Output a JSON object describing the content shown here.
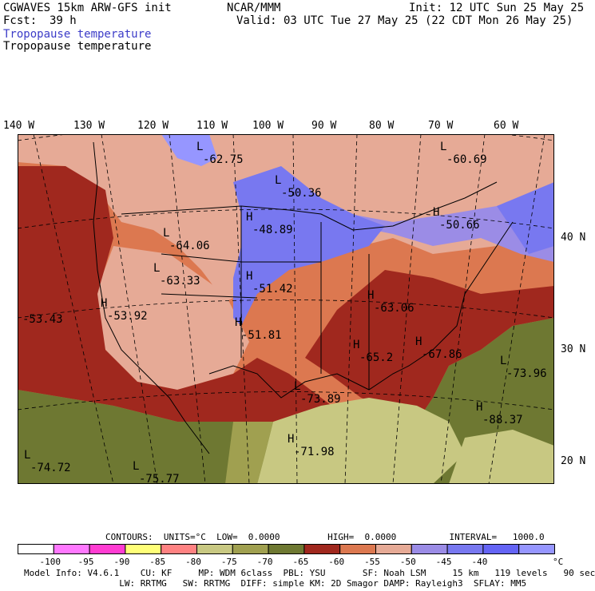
{
  "header": {
    "model_line": "CGWAVES 15km ARW-GFS init",
    "org": "NCAR/MMM",
    "init": "Init: 12 UTC Sun 25 May 25",
    "fcst_label": "Fcst:",
    "fcst_value": "39 h",
    "valid": "Valid: 03 UTC Tue 27 May 25 (22 CDT Mon 26 May 25)",
    "field1": "Tropopause temperature",
    "field2": "Tropopause temperature",
    "field1_color": "#3c3cc8"
  },
  "axes": {
    "lon_labels": [
      "140 W",
      "130 W",
      "120 W",
      "110 W",
      "100 W",
      "90 W",
      "80 W",
      "70 W",
      "60 W"
    ],
    "lat_labels": [
      "40 N",
      "30 N",
      "20 N"
    ]
  },
  "highs_lows": [
    {
      "kind": "L",
      "value": "-62.75"
    },
    {
      "kind": "L",
      "value": "-60.69"
    },
    {
      "kind": "L",
      "value": "-50.36"
    },
    {
      "kind": "H",
      "value": "-48.89"
    },
    {
      "kind": "H",
      "value": "-50.66"
    },
    {
      "kind": "L",
      "value": "-64.06"
    },
    {
      "kind": "L",
      "value": "-63.33"
    },
    {
      "kind": "H",
      "value": "-51.42"
    },
    {
      "kind": "H",
      "value": "-53.92"
    },
    {
      "kind": "",
      "value": "-53.43"
    },
    {
      "kind": "H",
      "value": "-51.81"
    },
    {
      "kind": "H",
      "value": "-63.06"
    },
    {
      "kind": "H",
      "value": "-65.2"
    },
    {
      "kind": "H",
      "value": "-67.86"
    },
    {
      "kind": "L",
      "value": "-73.96"
    },
    {
      "kind": "L",
      "value": "-73.89"
    },
    {
      "kind": "H",
      "value": "-88.37"
    },
    {
      "kind": "H",
      "value": "-71.98"
    },
    {
      "kind": "L",
      "value": "-74.72"
    },
    {
      "kind": "L",
      "value": "-75.77"
    }
  ],
  "contours": {
    "text": "CONTOURS:  UNITS=°C  LOW=  0.0000         HIGH=  0.0000          INTERVAL=   1000.0"
  },
  "colorbar": {
    "colors": [
      "#ffffff",
      "#ff78ff",
      "#ff3cd2",
      "#ffff78",
      "#ff8282",
      "#c8c882",
      "#a0a050",
      "#6e7832",
      "#a0281e",
      "#dc7850",
      "#e6aa96",
      "#9b8ce6",
      "#7878f0",
      "#6464f5",
      "#9696ff"
    ],
    "labels": [
      "-100",
      "-95",
      "-90",
      "-85",
      "-80",
      "-75",
      "-70",
      "-65",
      "-60",
      "-55",
      "-50",
      "-45",
      "-40"
    ],
    "unit": "°C"
  },
  "footer": {
    "line1": "Model Info: V4.6.1    CU: KF     MP: WDM 6class  PBL: YSU       SF: Noah LSM     15 km   119 levels   90 sec",
    "line2": "                  LW: RRTMG   SW: RRTMG  DIFF: simple KM: 2D Smagor DAMP: Rayleigh3  SFLAY: MM5"
  }
}
